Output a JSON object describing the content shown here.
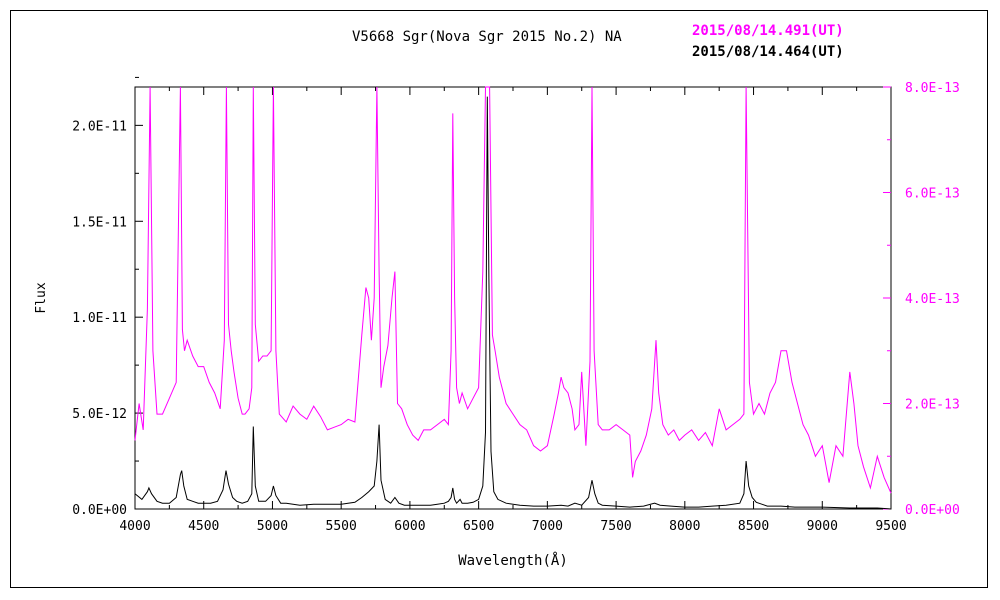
{
  "chart_data": {
    "type": "line",
    "title": "V5668 Sgr(Nova Sgr 2015 No.2)   NA",
    "xlabel": "Wavelength(Å)",
    "ylabel": "Flux",
    "xlim": [
      4000,
      9500
    ],
    "ylim_left": [
      0,
      2.2e-11
    ],
    "ylim_right": [
      0,
      8e-13
    ],
    "x_ticks": [
      "4000",
      "4500",
      "5000",
      "5500",
      "6000",
      "6500",
      "7000",
      "7500",
      "8000",
      "8500",
      "9000",
      "9500"
    ],
    "y_ticks_left": [
      "0.0E+00",
      "5.0E-12",
      "1.0E-11",
      "1.5E-11",
      "2.0E-11"
    ],
    "y_ticks_right": [
      "0.0E+00",
      "2.0E-13",
      "4.0E-13",
      "6.0E-13",
      "8.0E-13"
    ],
    "grid": false,
    "series": [
      {
        "name": "2015/08/14.491(UT)",
        "color": "#ff00ff",
        "axis": "right",
        "x": [
          4000,
          4030,
          4060,
          4090,
          4110,
          4130,
          4160,
          4200,
          4250,
          4300,
          4330,
          4345,
          4360,
          4380,
          4420,
          4460,
          4500,
          4540,
          4580,
          4620,
          4650,
          4665,
          4680,
          4700,
          4720,
          4750,
          4780,
          4800,
          4830,
          4850,
          4861,
          4875,
          4900,
          4930,
          4960,
          4990,
          5007,
          5025,
          5050,
          5100,
          5150,
          5200,
          5250,
          5300,
          5350,
          5400,
          5450,
          5500,
          5550,
          5600,
          5650,
          5680,
          5700,
          5720,
          5740,
          5760,
          5776,
          5790,
          5810,
          5840,
          5870,
          5891,
          5910,
          5940,
          5980,
          6020,
          6060,
          6100,
          6150,
          6200,
          6250,
          6280,
          6300,
          6312,
          6325,
          6340,
          6360,
          6380,
          6420,
          6460,
          6500,
          6530,
          6550,
          6563,
          6580,
          6600,
          6620,
          6650,
          6700,
          6750,
          6800,
          6850,
          6900,
          6950,
          7000,
          7050,
          7080,
          7100,
          7120,
          7150,
          7180,
          7200,
          7230,
          7250,
          7280,
          7310,
          7325,
          7340,
          7370,
          7400,
          7450,
          7500,
          7550,
          7600,
          7620,
          7640,
          7680,
          7720,
          7760,
          7790,
          7810,
          7840,
          7880,
          7920,
          7960,
          8000,
          8050,
          8100,
          8150,
          8200,
          8250,
          8300,
          8350,
          8400,
          8430,
          8446,
          8470,
          8500,
          8540,
          8580,
          8620,
          8660,
          8700,
          8740,
          8780,
          8820,
          8860,
          8900,
          8950,
          9000,
          9050,
          9100,
          9150,
          9200,
          9230,
          9260,
          9300,
          9350,
          9400,
          9450,
          9500
        ],
        "y": [
          1.3e-13,
          2e-13,
          1.5e-13,
          3.8e-13,
          8e-13,
          3e-13,
          1.8e-13,
          1.8e-13,
          2.1e-13,
          2.4e-13,
          8e-13,
          3.4e-13,
          3e-13,
          3.2e-13,
          2.9e-13,
          2.7e-13,
          2.7e-13,
          2.4e-13,
          2.2e-13,
          1.9e-13,
          3.2e-13,
          8e-13,
          3.5e-13,
          3e-13,
          2.6e-13,
          2.1e-13,
          1.8e-13,
          1.8e-13,
          1.9e-13,
          2.3e-13,
          8e-13,
          3.5e-13,
          2.8e-13,
          2.9e-13,
          2.9e-13,
          3e-13,
          8e-13,
          3e-13,
          1.8e-13,
          1.65e-13,
          1.95e-13,
          1.8e-13,
          1.7e-13,
          1.95e-13,
          1.75e-13,
          1.5e-13,
          1.55e-13,
          1.6e-13,
          1.7e-13,
          1.65e-13,
          3.3e-13,
          4.2e-13,
          4e-13,
          3.2e-13,
          4e-13,
          8e-13,
          4.5e-13,
          2.3e-13,
          2.7e-13,
          3.1e-13,
          4e-13,
          4.5e-13,
          2e-13,
          1.9e-13,
          1.6e-13,
          1.4e-13,
          1.3e-13,
          1.5e-13,
          1.5e-13,
          1.6e-13,
          1.7e-13,
          1.6e-13,
          3e-13,
          7.5e-13,
          4e-13,
          2.3e-13,
          2e-13,
          2.2e-13,
          1.9e-13,
          2.1e-13,
          2.3e-13,
          4.5e-13,
          8e-13,
          8e-13,
          8e-13,
          3.3e-13,
          3e-13,
          2.5e-13,
          2e-13,
          1.8e-13,
          1.6e-13,
          1.5e-13,
          1.2e-13,
          1.1e-13,
          1.2e-13,
          1.8e-13,
          2.2e-13,
          2.5e-13,
          2.3e-13,
          2.2e-13,
          1.9e-13,
          1.5e-13,
          1.6e-13,
          2.6e-13,
          1.2e-13,
          2.8e-13,
          8e-13,
          3e-13,
          1.6e-13,
          1.5e-13,
          1.5e-13,
          1.6e-13,
          1.5e-13,
          1.4e-13,
          6e-14,
          9e-14,
          1.1e-13,
          1.4e-13,
          1.9e-13,
          3.2e-13,
          2.2e-13,
          1.6e-13,
          1.4e-13,
          1.5e-13,
          1.3e-13,
          1.4e-13,
          1.5e-13,
          1.3e-13,
          1.45e-13,
          1.2e-13,
          1.9e-13,
          1.5e-13,
          1.6e-13,
          1.7e-13,
          1.8e-13,
          8e-13,
          2.4e-13,
          1.8e-13,
          2e-13,
          1.8e-13,
          2.2e-13,
          2.4e-13,
          3e-13,
          3e-13,
          2.4e-13,
          2e-13,
          1.6e-13,
          1.4e-13,
          1e-13,
          1.2e-13,
          5e-14,
          1.2e-13,
          1e-13,
          2.6e-13,
          2e-13,
          1.2e-13,
          8e-14,
          4e-14,
          1e-13,
          6e-14,
          3e-14
        ]
      },
      {
        "name": "2015/08/14.464(UT)",
        "color": "#000000",
        "axis": "left",
        "x": [
          4000,
          4050,
          4090,
          4101,
          4120,
          4160,
          4200,
          4250,
          4300,
          4330,
          4340,
          4355,
          4380,
          4420,
          4460,
          4500,
          4550,
          4600,
          4640,
          4662,
          4680,
          4710,
          4740,
          4780,
          4820,
          4850,
          4861,
          4875,
          4900,
          4950,
          4990,
          5007,
          5025,
          5060,
          5100,
          5200,
          5300,
          5400,
          5500,
          5600,
          5650,
          5700,
          5740,
          5760,
          5776,
          5790,
          5820,
          5860,
          5891,
          5920,
          5960,
          6000,
          6050,
          6100,
          6150,
          6200,
          6250,
          6280,
          6300,
          6312,
          6325,
          6340,
          6365,
          6380,
          6420,
          6460,
          6500,
          6530,
          6550,
          6563,
          6575,
          6590,
          6610,
          6640,
          6700,
          6800,
          6900,
          7000,
          7100,
          7150,
          7200,
          7250,
          7300,
          7325,
          7345,
          7370,
          7400,
          7500,
          7600,
          7700,
          7780,
          7820,
          7900,
          8000,
          8100,
          8200,
          8300,
          8400,
          8430,
          8446,
          8465,
          8490,
          8520,
          8560,
          8600,
          8700,
          8800,
          9000,
          9200,
          9400,
          9500
        ],
        "y": [
          8e-13,
          5e-13,
          9e-13,
          1.1e-12,
          8e-13,
          4e-13,
          3e-13,
          3e-13,
          6e-13,
          1.8e-12,
          2e-12,
          1.2e-12,
          5e-13,
          4e-13,
          3e-13,
          3e-13,
          3e-13,
          4e-13,
          1e-12,
          2e-12,
          1.3e-12,
          6e-13,
          4e-13,
          3e-13,
          4e-13,
          8e-13,
          4.3e-12,
          1.2e-12,
          4e-13,
          4e-13,
          7e-13,
          1.2e-12,
          7e-13,
          3e-13,
          3e-13,
          2e-13,
          2.5e-13,
          2.5e-13,
          2.5e-13,
          3.5e-13,
          6e-13,
          9e-13,
          1.2e-12,
          2.5e-12,
          4.4e-12,
          1.5e-12,
          5e-13,
          3e-13,
          6e-13,
          3e-13,
          2e-13,
          2e-13,
          2e-13,
          2e-13,
          2e-13,
          2.5e-13,
          3e-13,
          4e-13,
          6e-13,
          1.1e-12,
          5e-13,
          3e-13,
          5e-13,
          3e-13,
          3e-13,
          3.5e-13,
          5e-13,
          1.2e-12,
          4e-12,
          2.15e-11,
          1.2e-11,
          3e-12,
          9e-13,
          5e-13,
          3e-13,
          2e-13,
          1.5e-13,
          1.5e-13,
          2e-13,
          1.5e-13,
          3e-13,
          2e-13,
          6e-13,
          1.5e-12,
          8e-13,
          3e-13,
          2e-13,
          1.5e-13,
          1e-13,
          1.5e-13,
          3e-13,
          2e-13,
          1.5e-13,
          1e-13,
          1e-13,
          1.5e-13,
          2e-13,
          3e-13,
          8e-13,
          2.5e-12,
          1.2e-12,
          6e-13,
          3.5e-13,
          2.5e-13,
          1.5e-13,
          1.5e-13,
          1e-13,
          1e-13,
          5e-14,
          5e-14,
          0.0
        ]
      }
    ]
  }
}
